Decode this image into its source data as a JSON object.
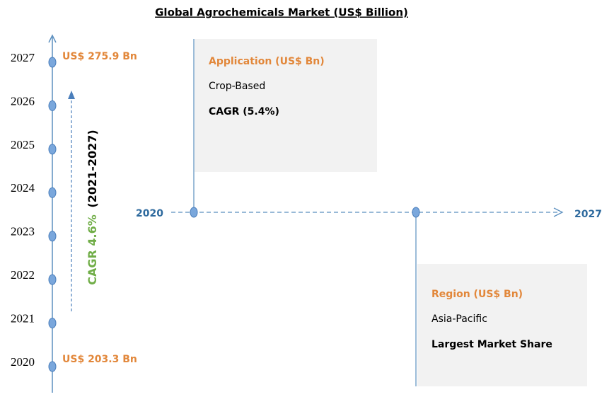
{
  "header": {
    "title": "Global Agrochemicals Market (US$ Billion)"
  },
  "vertical_timeline": {
    "years": [
      "2027",
      "2026",
      "2025",
      "2024",
      "2023",
      "2022",
      "2021",
      "2020"
    ],
    "end_value": "US$ 275.9 Bn",
    "start_value": "US$ 203.3 Bn",
    "cagr": "CAGR 4.6%",
    "cagr_period": "(2021-2027)"
  },
  "horizontal_timeline": {
    "start": "2020",
    "end": "2027"
  },
  "boxes": [
    {
      "heading": "Application (US$ Bn)",
      "item": "Crop-Based",
      "note": "CAGR (5.4%)"
    },
    {
      "heading": "Region (US$ Bn)",
      "item": "Asia-Pacific",
      "note": "Largest Market Share"
    }
  ]
}
